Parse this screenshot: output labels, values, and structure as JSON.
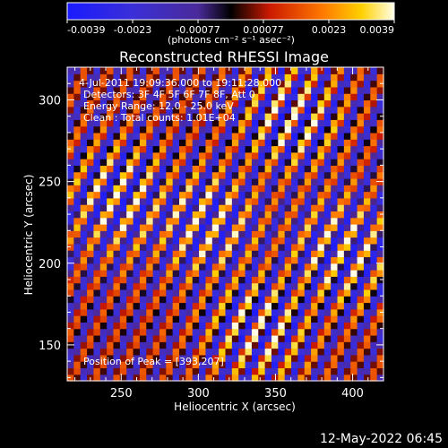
{
  "chart_data": {
    "type": "heatmap",
    "title": "Reconstructed RHESSI Image",
    "xlabel": "Heliocentric X (arcsec)",
    "ylabel": "Heliocentric Y (arcsec)",
    "xlim": [
      215,
      420
    ],
    "ylim": [
      128,
      320
    ],
    "xticks": [
      "250",
      "300",
      "350",
      "400"
    ],
    "yticks": [
      "150",
      "200",
      "250",
      "300"
    ],
    "colorbar": {
      "tick_labels": [
        "-0.0039",
        "-0.0023",
        "-0.00077",
        "0.00077",
        "0.0023",
        "0.0039"
      ],
      "range": [
        -0.0039,
        0.0039
      ],
      "units": "(photons cm⁻² s⁻¹ asec⁻²)"
    },
    "info": [
      "4-Jul-2011 19:09:36.000 to 19:11:28.000",
      "Detectors: 3F 4F 5F 6F 7F 8F, Att 0",
      "Energy Range: 12.0 - 25.0 keV",
      "Clean : Total counts: 1.01E+04"
    ],
    "peak_label": "Position of Peak = [393,207]",
    "peak": {
      "x": 393,
      "y": 207
    },
    "fringe": {
      "kx": 0.42,
      "ky": -0.22,
      "bright_centers": [
        [
          305,
          225
        ],
        [
          393,
          207
        ],
        [
          340,
          160
        ],
        [
          360,
          290
        ],
        [
          250,
          240
        ]
      ]
    }
  },
  "footer": {
    "date": "12-May-2022 06:45"
  }
}
